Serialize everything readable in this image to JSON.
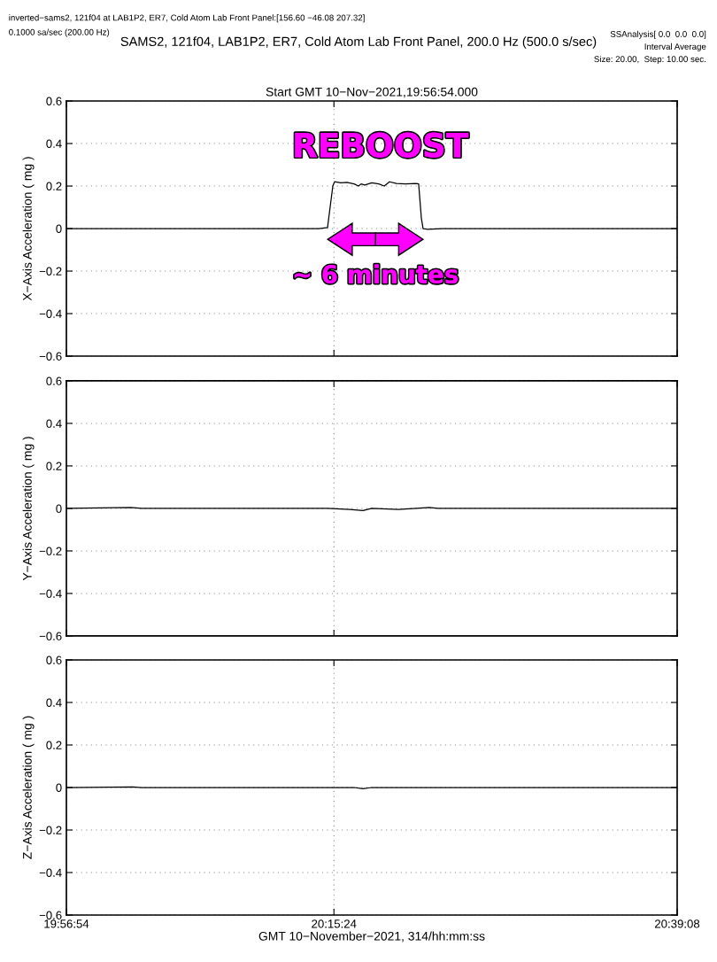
{
  "chart_data": [
    {
      "type": "line",
      "title": "Start GMT 10−Nov−2021,19:56:54.000",
      "ylabel": "X−Axis Acceleration ( mg )",
      "annotations": [
        "inverted−sams2, 121f04 at LAB1P2, ER7, Cold Atom Lab Front Panel:[156.60 −46.08 207.32]",
        "0.1000 sa/sec (200.00 Hz)",
        "SAMS2, 121f04, LAB1P2, ER7, Cold Atom Lab Front Panel, 200.0 Hz (500.0 s/sec)",
        "SSAnalysis[ 0.0  0.0  0.0]",
        "Interval Average",
        "Size: 20.00,  Step: 10.00 sec.",
        "REBOOST",
        "~ 6 minutes"
      ],
      "x": [
        19.948333,
        20.0759,
        20.2391,
        20.2493,
        20.2554,
        20.2574,
        20.2646,
        20.2717,
        20.2799,
        20.285,
        20.288,
        20.2921,
        20.3003,
        20.3084,
        20.3146,
        20.3207,
        20.3288,
        20.339,
        20.3513,
        20.3543,
        20.3574,
        20.3594,
        20.3635,
        20.3819,
        20.6522
      ],
      "series": [
        {
          "color": "#000000",
          "values": [
            0,
            0,
            0,
            0.005,
            0.2,
            0.22,
            0.215,
            0.217,
            0.21,
            0.2,
            0.21,
            0.205,
            0.215,
            0.21,
            0.2,
            0.22,
            0.212,
            0.21,
            0.212,
            0.21,
            0.05,
            0,
            -0.003,
            0,
            0
          ]
        }
      ],
      "xlim": [
        19.948333,
        20.652222
      ],
      "xticks": [
        {
          "value": 19.948333,
          "label": null
        },
        {
          "value": 20.256667,
          "label": null
        },
        {
          "value": 20.652222,
          "label": null
        }
      ],
      "ylim": [
        -0.6,
        0.6
      ],
      "yticks": [
        {
          "value": -0.6,
          "label": "−0.6"
        },
        {
          "value": -0.4,
          "label": "−0.4"
        },
        {
          "value": -0.2,
          "label": "−0.2"
        },
        0,
        0.2,
        0.4,
        0.6
      ],
      "grid": true,
      "tick_labels": "y"
    },
    {
      "type": "line",
      "ylabel": "Y−Axis Acceleration ( mg )",
      "x": [
        19.948333,
        20.0228,
        20.035,
        20.2493,
        20.2748,
        20.2901,
        20.3003,
        20.3309,
        20.3513,
        20.3666,
        20.3768,
        20.6522
      ],
      "series": [
        {
          "color": "#000000",
          "values": [
            0,
            0.005,
            0,
            0,
            -0.005,
            -0.01,
            0,
            -0.005,
            0,
            0.005,
            0,
            0
          ]
        }
      ],
      "xlim": [
        19.948333,
        20.652222
      ],
      "xticks": [
        {
          "value": 19.948333,
          "label": null
        },
        {
          "value": 20.256667,
          "label": null
        },
        {
          "value": 20.652222,
          "label": null
        }
      ],
      "ylim": [
        -0.6,
        0.6
      ],
      "yticks": [
        {
          "value": -0.6,
          "label": "−0.6"
        },
        {
          "value": -0.4,
          "label": "−0.4"
        },
        {
          "value": -0.2,
          "label": "−0.2"
        },
        0,
        0.2,
        0.4,
        0.6
      ],
      "grid": true,
      "tick_labels": "y"
    },
    {
      "type": "line",
      "ylabel": "Z−Axis Acceleration ( mg )",
      "xlabel": "GMT 10−November−2021, 314/hh:mm:ss",
      "x": [
        19.948333,
        20.0248,
        20.035,
        20.2799,
        20.2901,
        20.3003,
        20.6522
      ],
      "series": [
        {
          "color": "#000000",
          "values": [
            0,
            0.003,
            0,
            0,
            -0.006,
            0,
            0
          ]
        }
      ],
      "xlim": [
        19.948333,
        20.652222
      ],
      "xticks": [
        {
          "value": 19.948333,
          "label": "19:56:54"
        },
        {
          "value": 20.256667,
          "label": "20:15:24"
        },
        {
          "value": 20.652222,
          "label": "20:39:08"
        }
      ],
      "ylim": [
        -0.6,
        0.6
      ],
      "yticks": [
        {
          "value": -0.6,
          "label": "−0.6"
        },
        {
          "value": -0.4,
          "label": "−0.4"
        },
        {
          "value": -0.2,
          "label": "−0.2"
        },
        0,
        0.2,
        0.4,
        0.6
      ],
      "grid": true
    }
  ]
}
